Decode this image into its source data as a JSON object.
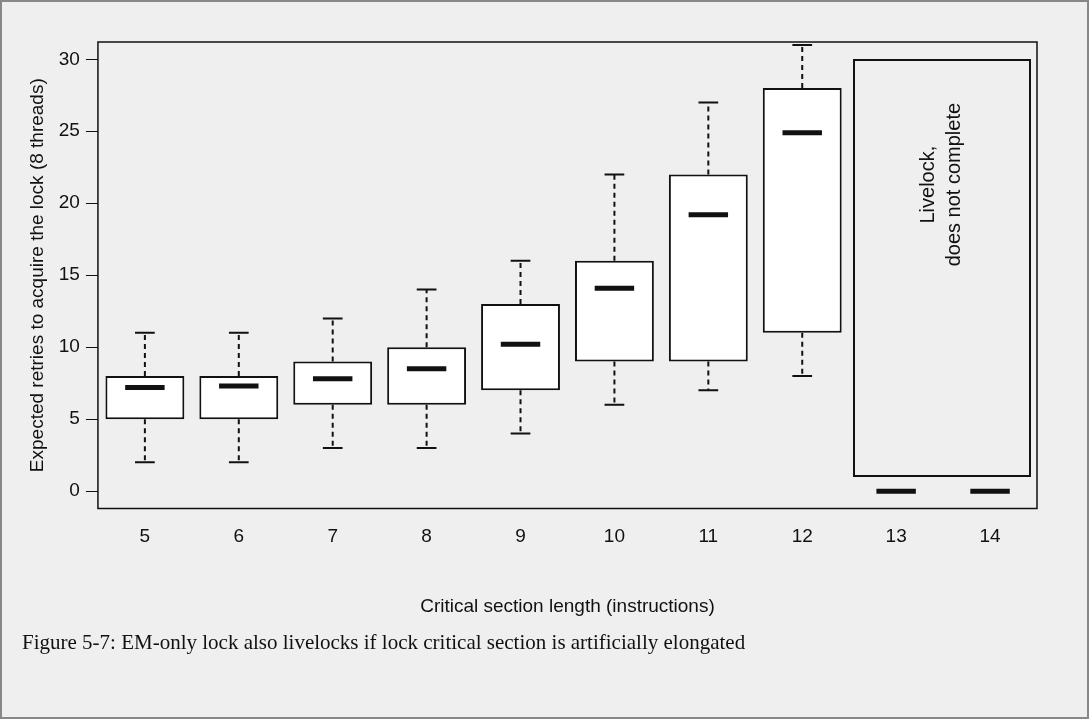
{
  "chart_data": {
    "type": "box",
    "xlabel": "Critical section length (instructions)",
    "ylabel": "Expected retries to acquire the lock (8 threads)",
    "categories": [
      "5",
      "6",
      "7",
      "8",
      "9",
      "10",
      "11",
      "12",
      "13",
      "14"
    ],
    "boxes": [
      {
        "low": 2,
        "q1": 5,
        "median": 7.2,
        "q3": 8,
        "high": 11
      },
      {
        "low": 2,
        "q1": 5,
        "median": 7.3,
        "q3": 8,
        "high": 11
      },
      {
        "low": 3,
        "q1": 6,
        "median": 7.8,
        "q3": 9,
        "high": 12
      },
      {
        "low": 3,
        "q1": 6,
        "median": 8.5,
        "q3": 10,
        "high": 14
      },
      {
        "low": 4,
        "q1": 7,
        "median": 10.2,
        "q3": 13,
        "high": 16
      },
      {
        "low": 6,
        "q1": 9,
        "median": 14.1,
        "q3": 16,
        "high": 22
      },
      {
        "low": 7,
        "q1": 9,
        "median": 19.2,
        "q3": 22,
        "high": 27
      },
      {
        "low": 8,
        "q1": 11,
        "median": 24.9,
        "q3": 28,
        "high": 31
      },
      {
        "low": 0,
        "q1": 0,
        "median": 0,
        "q3": 0,
        "high": 0
      },
      {
        "low": 0,
        "q1": 0,
        "median": 0,
        "q3": 0,
        "high": 0
      }
    ],
    "ylim": [
      -1.2,
      31.2
    ],
    "yticks": [
      0,
      5,
      10,
      15,
      20,
      25,
      30
    ],
    "grid": false,
    "legend": false,
    "annotations": [
      "Livelock,\ndoes not complete",
      "Figure 5-7: EM-only lock also livelocks if lock critical section is artificially elongated"
    ]
  }
}
